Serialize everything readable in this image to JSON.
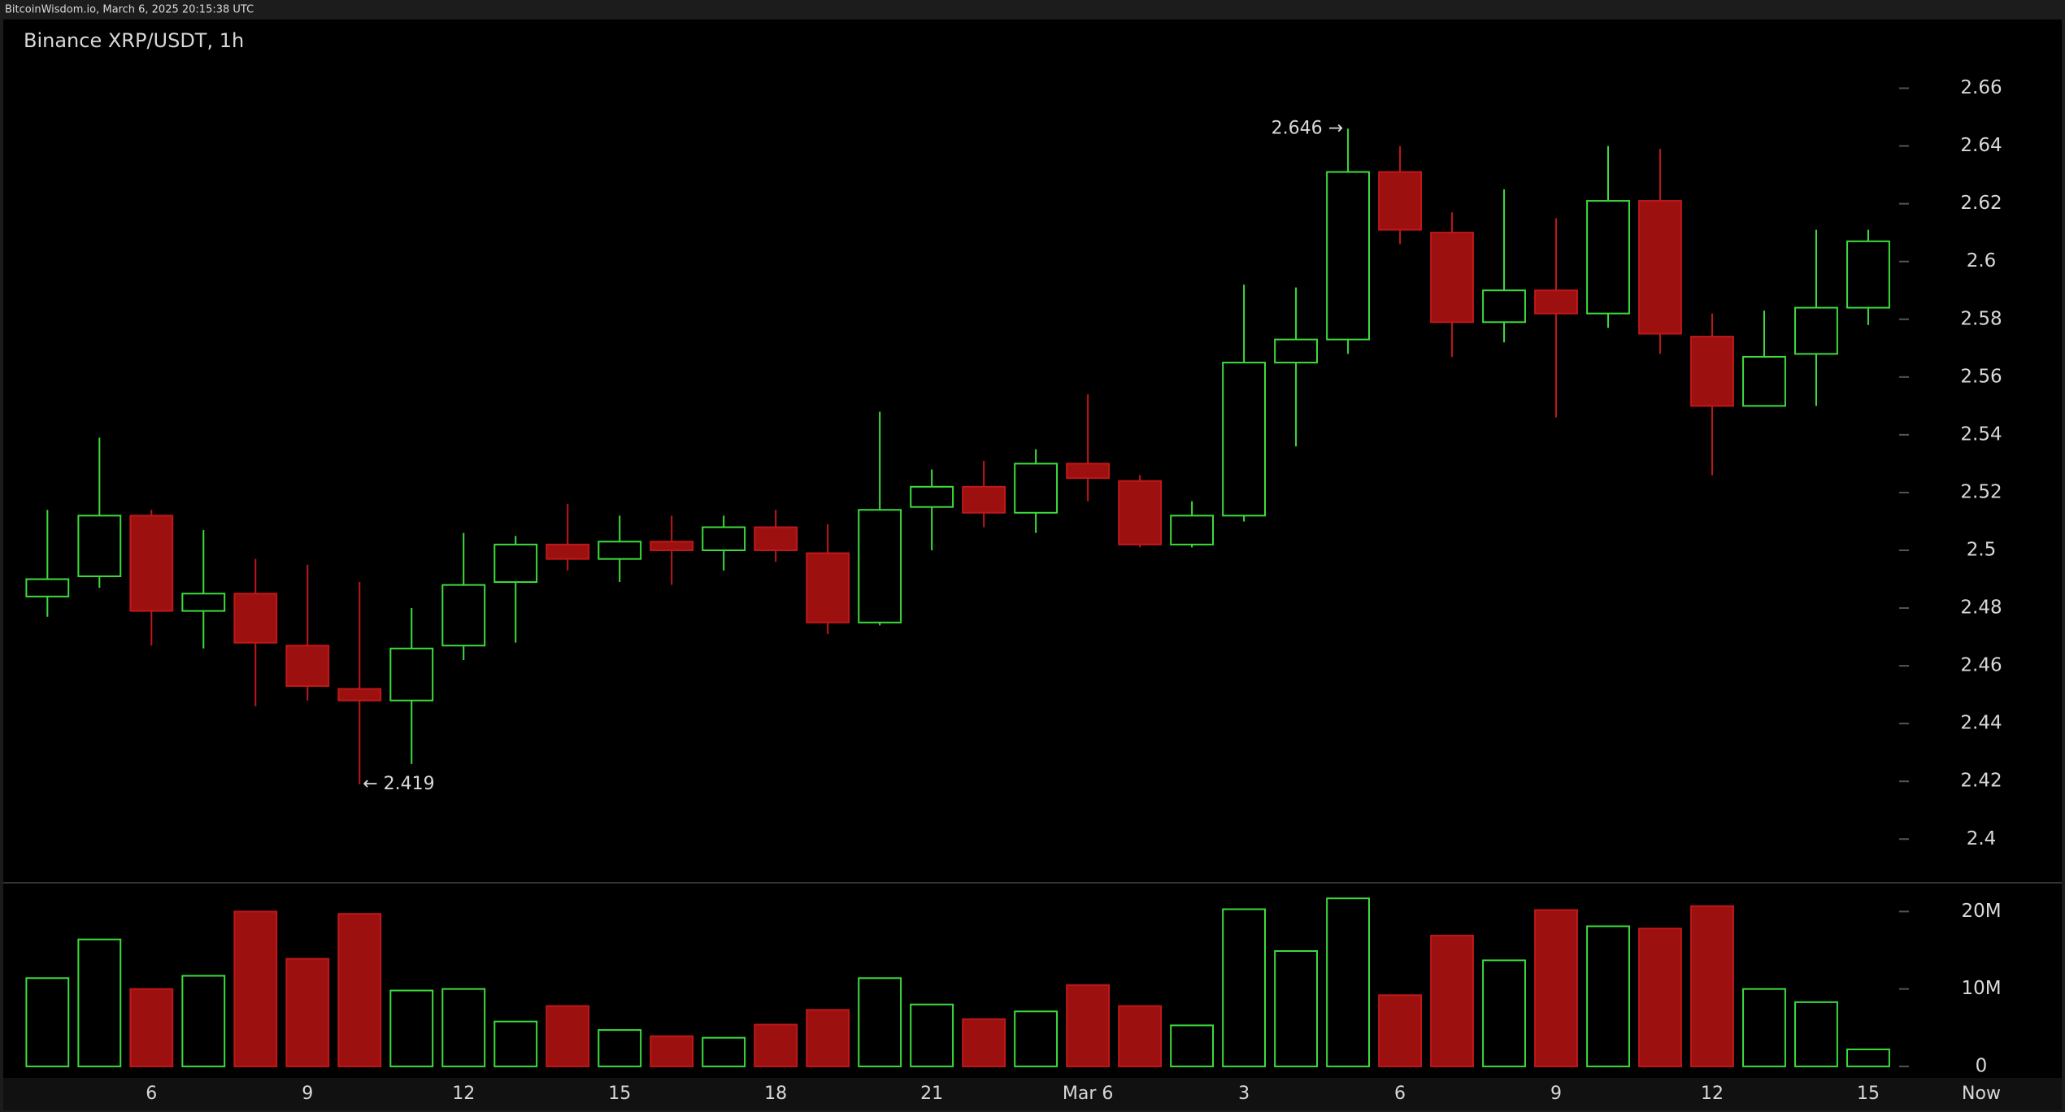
{
  "header": {
    "source": "BitcoinWisdom.io, March 6, 2025 20:15:38 UTC"
  },
  "chart_data": {
    "type": "candlestick",
    "title": "Binance XRP/USDT, 1h",
    "categories": [
      null,
      null,
      "6",
      null,
      null,
      "9",
      null,
      null,
      "12",
      null,
      null,
      "15",
      null,
      null,
      "18",
      null,
      null,
      "21",
      null,
      null,
      "Mar 6",
      null,
      null,
      "3",
      null,
      null,
      "6",
      null,
      null,
      "9",
      null,
      null,
      "12",
      null,
      null,
      "15"
    ],
    "now_label": "Now",
    "open": [
      2.484,
      2.491,
      2.512,
      2.479,
      2.485,
      2.467,
      2.452,
      2.448,
      2.467,
      2.489,
      2.502,
      2.497,
      2.503,
      2.5,
      2.508,
      2.499,
      2.475,
      2.515,
      2.522,
      2.513,
      2.53,
      2.524,
      2.502,
      2.512,
      2.565,
      2.573,
      2.631,
      2.61,
      2.579,
      2.59,
      2.582,
      2.621,
      2.574,
      2.55,
      2.568,
      2.584
    ],
    "high": [
      2.514,
      2.539,
      2.514,
      2.507,
      2.497,
      2.495,
      2.489,
      2.48,
      2.506,
      2.505,
      2.516,
      2.512,
      2.512,
      2.512,
      2.514,
      2.509,
      2.548,
      2.528,
      2.531,
      2.535,
      2.554,
      2.526,
      2.517,
      2.592,
      2.591,
      2.646,
      2.64,
      2.617,
      2.625,
      2.615,
      2.64,
      2.639,
      2.582,
      2.583,
      2.611,
      2.611
    ],
    "low": [
      2.477,
      2.487,
      2.467,
      2.466,
      2.446,
      2.448,
      2.419,
      2.426,
      2.462,
      2.468,
      2.493,
      2.489,
      2.488,
      2.493,
      2.496,
      2.471,
      2.474,
      2.5,
      2.508,
      2.506,
      2.517,
      2.501,
      2.501,
      2.51,
      2.536,
      2.568,
      2.606,
      2.567,
      2.572,
      2.546,
      2.577,
      2.568,
      2.526,
      2.55,
      2.55,
      2.578
    ],
    "close": [
      2.49,
      2.512,
      2.479,
      2.485,
      2.468,
      2.453,
      2.448,
      2.466,
      2.488,
      2.502,
      2.497,
      2.503,
      2.5,
      2.508,
      2.5,
      2.475,
      2.514,
      2.522,
      2.513,
      2.53,
      2.525,
      2.502,
      2.512,
      2.565,
      2.573,
      2.631,
      2.611,
      2.579,
      2.59,
      2.582,
      2.621,
      2.575,
      2.55,
      2.567,
      2.584,
      2.607
    ],
    "ylim": [
      2.386,
      2.67
    ],
    "yticks": [
      2.4,
      2.42,
      2.44,
      2.46,
      2.48,
      2.5,
      2.52,
      2.54,
      2.56,
      2.58,
      2.6,
      2.62,
      2.64,
      2.66
    ],
    "up_color": "#3ddc3d",
    "down_color": "#9c1010",
    "annotations": {
      "max_label": "2.646 →",
      "min_label": "← 2.419"
    },
    "volume": {
      "values": [
        11400000,
        16400000,
        10000000,
        11700000,
        20000000,
        13900000,
        19700000,
        9800000,
        10000000,
        5800000,
        7800000,
        4700000,
        3900000,
        3700000,
        5400000,
        7300000,
        11400000,
        8000000,
        6100000,
        7100000,
        10500000,
        7800000,
        5300000,
        20300000,
        14900000,
        21700000,
        9200000,
        16900000,
        13700000,
        20200000,
        18100000,
        17800000,
        20700000,
        10000000,
        8300000,
        2200000
      ],
      "ylim": [
        -850000,
        23400000
      ],
      "yticks": [
        0,
        {
          "value": 10000000,
          "label": "10M"
        },
        {
          "value": 20000000,
          "label": "20M"
        }
      ]
    }
  }
}
